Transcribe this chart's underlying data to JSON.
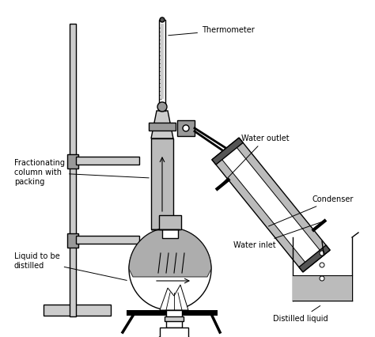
{
  "background_color": "#ffffff",
  "line_color": "#000000",
  "dark_gray": "#555555",
  "light_gray": "#cccccc",
  "medium_gray": "#999999",
  "fill_gray": "#bbbbbb",
  "labels": {
    "thermometer": "Thermometer",
    "fractionating": "Fractionating\ncolumn with\npacking",
    "liquid": "Liquid to be\ndistilled",
    "water_outlet": "Water outlet",
    "condenser": "Condenser",
    "water_inlet": "Water inlet",
    "distilled": "Distilled liquid"
  },
  "figsize": [
    4.74,
    4.26
  ],
  "dpi": 100
}
